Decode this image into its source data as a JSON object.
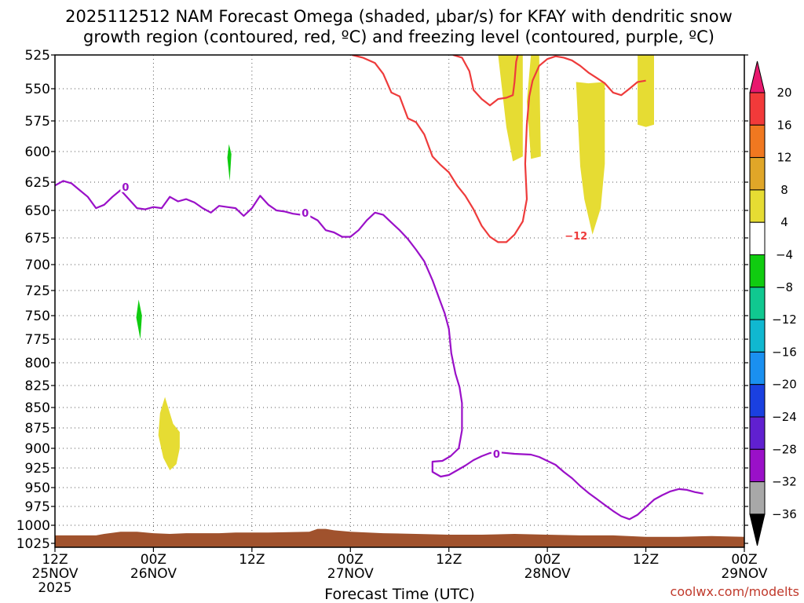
{
  "title_lines": [
    "2025112512 NAM Forecast Omega (shaded, μbar/s) for KFAY with dendritic snow",
    "growth region (contoured, red, ºC) and freezing level (contoured, purple, ºC)"
  ],
  "xlabel": "Forecast Time (UTC)",
  "credit": "coolwx.com/modelts",
  "chart_data": {
    "type": "contour",
    "x_range_hours": [
      0,
      84
    ],
    "y_range_hpa": [
      1035,
      525
    ],
    "y_ticks": [
      525,
      550,
      575,
      600,
      625,
      650,
      675,
      700,
      725,
      750,
      775,
      800,
      825,
      850,
      875,
      900,
      925,
      950,
      975,
      1000,
      1025
    ],
    "x_ticks": [
      {
        "hour": 0,
        "lines": [
          "12Z",
          "25NOV",
          "2025"
        ]
      },
      {
        "hour": 12,
        "lines": [
          "00Z",
          "26NOV"
        ]
      },
      {
        "hour": 24,
        "lines": [
          "12Z"
        ]
      },
      {
        "hour": 36,
        "lines": [
          "00Z",
          "27NOV"
        ]
      },
      {
        "hour": 48,
        "lines": [
          "12Z"
        ]
      },
      {
        "hour": 60,
        "lines": [
          "00Z",
          "28NOV"
        ]
      },
      {
        "hour": 72,
        "lines": [
          "12Z"
        ]
      },
      {
        "hour": 84,
        "lines": [
          "00Z",
          "29NOV"
        ]
      }
    ],
    "colorbar": {
      "label_values": [
        "20",
        "16",
        "12",
        "8",
        "4",
        "−4",
        "−8",
        "−12",
        "−16",
        "−20",
        "−24",
        "−28",
        "−32",
        "−36"
      ],
      "colors": [
        "#e8186e",
        "#f23a3a",
        "#f07820",
        "#e0a628",
        "#e6dc33",
        "#ffffff",
        "#10cc10",
        "#10c890",
        "#10b8d0",
        "#1a90f0",
        "#1a40e0",
        "#6020d0",
        "#9a10c8",
        "#a8a8a8",
        "#000000"
      ]
    },
    "series": [
      {
        "name": "freezing level 0 ºC",
        "color": "#9a10c8",
        "label": "0",
        "label_points": [
          {
            "x": 8.6,
            "y": 629
          },
          {
            "x": 30.5,
            "y": 652
          },
          {
            "x": 53.8,
            "y": 907
          }
        ],
        "points": [
          [
            0,
            628
          ],
          [
            1,
            624
          ],
          [
            2,
            626
          ],
          [
            3,
            632
          ],
          [
            4,
            638
          ],
          [
            5,
            648
          ],
          [
            6,
            645
          ],
          [
            7,
            638
          ],
          [
            8,
            632
          ],
          [
            9,
            640
          ],
          [
            10,
            648
          ],
          [
            11,
            649
          ],
          [
            12,
            647
          ],
          [
            13,
            648
          ],
          [
            14,
            638
          ],
          [
            15,
            642
          ],
          [
            16,
            640
          ],
          [
            17,
            643
          ],
          [
            18,
            648
          ],
          [
            19,
            652
          ],
          [
            20,
            646
          ],
          [
            21,
            647
          ],
          [
            22,
            648
          ],
          [
            23,
            655
          ],
          [
            24,
            648
          ],
          [
            25,
            637
          ],
          [
            26,
            645
          ],
          [
            27,
            650
          ],
          [
            28,
            651
          ],
          [
            29,
            653
          ],
          [
            30,
            654
          ],
          [
            31,
            655
          ],
          [
            32,
            659
          ],
          [
            33,
            668
          ],
          [
            34,
            670
          ],
          [
            35,
            674
          ],
          [
            36,
            674
          ],
          [
            37,
            668
          ],
          [
            38,
            659
          ],
          [
            39,
            652
          ],
          [
            40,
            654
          ],
          [
            41,
            661
          ],
          [
            42,
            668
          ],
          [
            43,
            676
          ],
          [
            44,
            686
          ],
          [
            45,
            697
          ],
          [
            46,
            715
          ],
          [
            47,
            737
          ],
          [
            47.5,
            748
          ],
          [
            48,
            764
          ],
          [
            48.3,
            790
          ],
          [
            48.8,
            812
          ],
          [
            49.3,
            827
          ],
          [
            49.6,
            845
          ],
          [
            49.6,
            878
          ],
          [
            49.2,
            900
          ],
          [
            48.2,
            910
          ],
          [
            47.2,
            916
          ],
          [
            46,
            917
          ],
          [
            46,
            930
          ],
          [
            47,
            936
          ],
          [
            48,
            934
          ],
          [
            49,
            928
          ],
          [
            50,
            922
          ],
          [
            51,
            915
          ],
          [
            52,
            910
          ],
          [
            53,
            906
          ],
          [
            54,
            905
          ],
          [
            56,
            907
          ],
          [
            58,
            908
          ],
          [
            59,
            911
          ],
          [
            60,
            916
          ],
          [
            61,
            921
          ],
          [
            62,
            930
          ],
          [
            63,
            938
          ],
          [
            64,
            948
          ],
          [
            65,
            957
          ],
          [
            66,
            965
          ],
          [
            67,
            973
          ],
          [
            68,
            981
          ],
          [
            69,
            988
          ],
          [
            70,
            992
          ],
          [
            71,
            986
          ],
          [
            72,
            976
          ],
          [
            73,
            966
          ],
          [
            74,
            960
          ],
          [
            75,
            955
          ],
          [
            76,
            952
          ],
          [
            77,
            953
          ],
          [
            78,
            956
          ],
          [
            79,
            958
          ]
        ]
      },
      {
        "name": "dendritic growth region −12 ºC",
        "color": "#ee3b3b",
        "label": "−12",
        "label_points": [
          {
            "x": 63.5,
            "y": 673
          }
        ],
        "points": [
          [
            36.2,
            524
          ],
          [
            37.5,
            527
          ],
          [
            39,
            531
          ],
          [
            40,
            539
          ],
          [
            41,
            553
          ],
          [
            42,
            556
          ],
          [
            43,
            573
          ],
          [
            44,
            576
          ],
          [
            45,
            586
          ],
          [
            46,
            604
          ],
          [
            47,
            611
          ],
          [
            48,
            617
          ],
          [
            49,
            628
          ],
          [
            50,
            637
          ],
          [
            51,
            649
          ],
          [
            52,
            664
          ],
          [
            53,
            674
          ],
          [
            54,
            679
          ],
          [
            55,
            679
          ],
          [
            56,
            672
          ],
          [
            57,
            660
          ],
          [
            57.5,
            640
          ],
          [
            57.3,
            610
          ],
          [
            57.5,
            578
          ],
          [
            57.8,
            556
          ],
          [
            58.2,
            544
          ],
          [
            59,
            533
          ],
          [
            60,
            528
          ],
          [
            61,
            526
          ],
          [
            62,
            527
          ],
          [
            63,
            529
          ],
          [
            64,
            533
          ],
          [
            65,
            538
          ],
          [
            66,
            542
          ],
          [
            67,
            546
          ],
          [
            68,
            553
          ],
          [
            69,
            555
          ],
          [
            70,
            550
          ],
          [
            71,
            545
          ],
          [
            72,
            544
          ]
        ]
      },
      {
        "name": "dendritic growth region −12 ºC (west lobe)",
        "color": "#ee3b3b",
        "label": "",
        "label_points": [],
        "points": [
          [
            48.5,
            524
          ],
          [
            49.6,
            527
          ],
          [
            50.5,
            537
          ],
          [
            51,
            551
          ],
          [
            52,
            558
          ],
          [
            53,
            563
          ],
          [
            54,
            558
          ],
          [
            55,
            557
          ],
          [
            55.8,
            555
          ],
          [
            56,
            545
          ],
          [
            56.2,
            530
          ],
          [
            56.4,
            524
          ]
        ]
      }
    ],
    "shaded_regions": [
      {
        "name": "omega 4-8 (upper 1)",
        "color": "#e6dc33",
        "points": [
          [
            54,
            525
          ],
          [
            57,
            525
          ],
          [
            57,
            604
          ],
          [
            55.8,
            608
          ],
          [
            55,
            580
          ],
          [
            54,
            525
          ]
        ]
      },
      {
        "name": "omega 4-8 (upper 2)",
        "color": "#e6dc33",
        "points": [
          [
            58,
            525
          ],
          [
            59,
            525
          ],
          [
            59.2,
            604
          ],
          [
            58,
            606
          ],
          [
            57.5,
            560
          ],
          [
            58,
            525
          ]
        ]
      },
      {
        "name": "omega 4-8 (upper 3)",
        "color": "#e6dc33",
        "points": [
          [
            65,
            546
          ],
          [
            67,
            545
          ],
          [
            67,
            610
          ],
          [
            66.5,
            648
          ],
          [
            65.5,
            672
          ],
          [
            64.5,
            640
          ],
          [
            64,
            612
          ],
          [
            63.5,
            545
          ],
          [
            65,
            546
          ]
        ]
      },
      {
        "name": "omega 4-8 (upper 4)",
        "color": "#e6dc33",
        "points": [
          [
            71,
            525
          ],
          [
            73,
            525
          ],
          [
            73,
            578
          ],
          [
            72,
            580
          ],
          [
            71,
            578
          ],
          [
            71,
            525
          ]
        ]
      },
      {
        "name": "omega 4-8 (lower)",
        "color": "#e6dc33",
        "points": [
          [
            13.4,
            838
          ],
          [
            14.4,
            870
          ],
          [
            15.2,
            880
          ],
          [
            15.2,
            900
          ],
          [
            14.8,
            920
          ],
          [
            14,
            928
          ],
          [
            13.2,
            912
          ],
          [
            12.6,
            884
          ],
          [
            12.8,
            857
          ],
          [
            13.4,
            838
          ]
        ]
      },
      {
        "name": "omega -4 to -8 (a)",
        "color": "#10cc10",
        "points": [
          [
            21.2,
            594
          ],
          [
            21.5,
            602
          ],
          [
            21.3,
            624
          ],
          [
            21,
            605
          ],
          [
            21.2,
            594
          ]
        ]
      },
      {
        "name": "omega -4 to -8 (b)",
        "color": "#10cc10",
        "points": [
          [
            10.2,
            734
          ],
          [
            10.6,
            750
          ],
          [
            10.4,
            775
          ],
          [
            9.9,
            752
          ],
          [
            10.2,
            734
          ]
        ]
      }
    ],
    "terrain_color": "#a0522d"
  }
}
